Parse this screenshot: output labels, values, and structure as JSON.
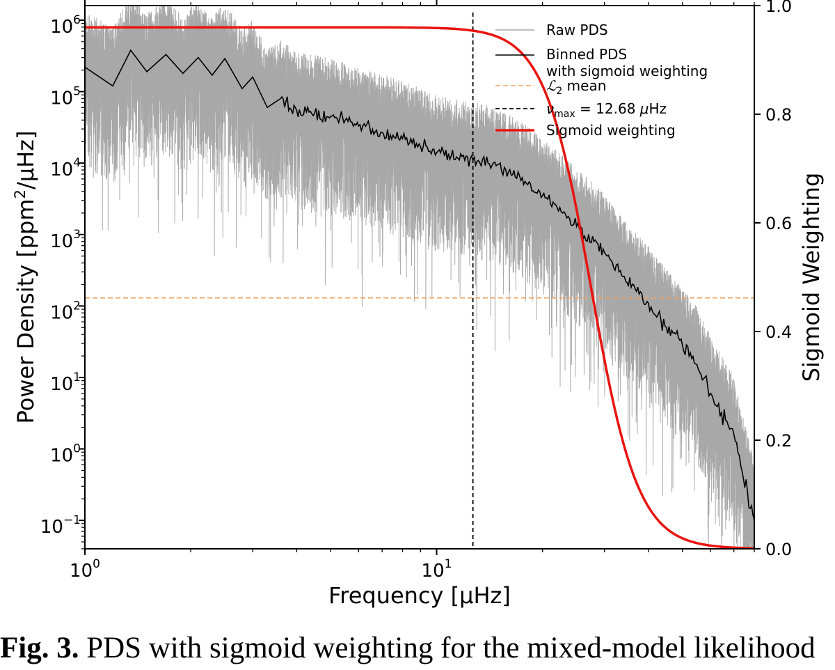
{
  "chart_data": {
    "type": "line",
    "xscale": "log",
    "xlim": [
      1,
      80
    ],
    "xlabel": "Frequency [μHz]",
    "x_tick_labels": [
      {
        "base": "10",
        "exp": "0"
      },
      {
        "base": "10",
        "exp": "1"
      }
    ],
    "y_left": {
      "label_prefix": "Power Density [ppm",
      "label_sup": "2",
      "label_suffix": "/μHz]",
      "scale": "log",
      "ylim": [
        0.04,
        1600000
      ],
      "tick_labels": [
        {
          "base": "10",
          "exp": "−1"
        },
        {
          "base": "10",
          "exp": "0"
        },
        {
          "base": "10",
          "exp": "1"
        },
        {
          "base": "10",
          "exp": "2"
        },
        {
          "base": "10",
          "exp": "3"
        },
        {
          "base": "10",
          "exp": "4"
        },
        {
          "base": "10",
          "exp": "5"
        },
        {
          "base": "10",
          "exp": "6"
        }
      ]
    },
    "y_right": {
      "label": "Sigmoid Weighting",
      "scale": "linear",
      "ylim": [
        0.0,
        1.0
      ],
      "tick_labels": [
        "0.0",
        "0.2",
        "0.4",
        "0.6",
        "0.8",
        "1.0"
      ]
    },
    "series": [
      {
        "name": "Raw PDS",
        "color": "#a8a8a8",
        "style": "thin noisy line",
        "description_points": [
          [
            1,
            150000
          ],
          [
            3,
            60000
          ],
          [
            6,
            25000
          ],
          [
            12.68,
            12000
          ],
          [
            20,
            3000
          ],
          [
            30,
            600
          ],
          [
            50,
            40
          ],
          [
            80,
            3
          ]
        ]
      },
      {
        "name": "Binned PDS with sigmoid weighting",
        "color": "#000000",
        "points": [
          [
            1.0,
            220000
          ],
          [
            1.2,
            120000
          ],
          [
            1.35,
            380000
          ],
          [
            1.5,
            190000
          ],
          [
            1.7,
            330000
          ],
          [
            1.9,
            180000
          ],
          [
            2.1,
            300000
          ],
          [
            2.3,
            170000
          ],
          [
            2.5,
            290000
          ],
          [
            2.8,
            110000
          ],
          [
            3.0,
            160000
          ],
          [
            3.3,
            60000
          ],
          [
            3.6,
            80000
          ],
          [
            4.0,
            55000
          ],
          [
            4.5,
            50000
          ],
          [
            5.0,
            45000
          ],
          [
            5.5,
            40000
          ],
          [
            6.0,
            33000
          ],
          [
            7.0,
            27000
          ],
          [
            8.0,
            22000
          ],
          [
            9.0,
            17000
          ],
          [
            10.0,
            14000
          ],
          [
            11.0,
            12500
          ],
          [
            12.68,
            11000
          ],
          [
            14.0,
            10000
          ],
          [
            16.0,
            7500
          ],
          [
            18.0,
            5200
          ],
          [
            20.0,
            3500
          ],
          [
            22.0,
            2400
          ],
          [
            25.0,
            1300
          ],
          [
            28.0,
            800
          ],
          [
            30.0,
            560
          ],
          [
            33.0,
            300
          ],
          [
            37.0,
            160
          ],
          [
            40.0,
            110
          ],
          [
            45.0,
            50
          ],
          [
            50.0,
            28
          ],
          [
            55.0,
            15
          ],
          [
            60.0,
            6
          ],
          [
            70.0,
            1.6
          ],
          [
            80.0,
            0.1
          ]
        ]
      },
      {
        "name": "L2 mean",
        "legend_label": "ℒ₂ mean",
        "color": "#f0a060",
        "style": "dashed",
        "value": 130
      },
      {
        "name": "nu_max",
        "legend_label": "νmax = 12.68 μHz",
        "color": "#000000",
        "style": "dashed vertical",
        "x": 12.68
      },
      {
        "name": "Sigmoid weighting",
        "color": "#e8140f",
        "axis": "right",
        "function": "w(f) = 0.96 / (1 + (f/27.5)^6.5)"
      }
    ],
    "legend": {
      "position": "top-right",
      "entries": [
        {
          "label": "Raw PDS"
        },
        {
          "label": "Binned PDS",
          "label2": "with sigmoid weighting"
        },
        {
          "script": "ℒ",
          "sub": "2",
          "rest": " mean"
        },
        {
          "greek": "ν",
          "sub": "max",
          "rest": " = 12.68 ",
          "unit_greek": "μ",
          "unit_rest": "Hz"
        },
        {
          "label": "Sigmoid weighting"
        }
      ]
    }
  },
  "caption": {
    "label": "Fig. 3.",
    "text": " PDS with sigmoid weighting for the mixed-model likelihood"
  }
}
